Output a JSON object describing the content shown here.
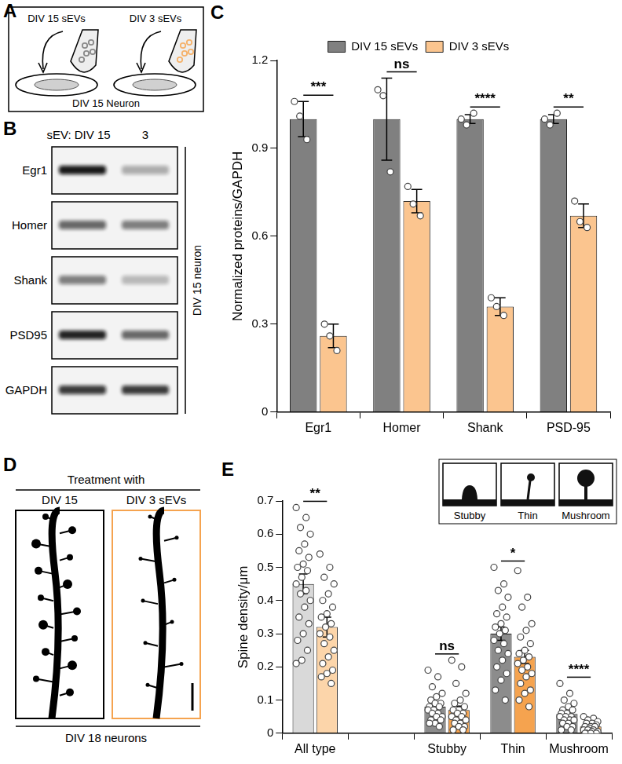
{
  "panel_a": {
    "label": "A",
    "sources": [
      "DIV 15 sEVs",
      "DIV 3 sEVs"
    ],
    "target": "DIV 15 Neuron"
  },
  "panel_b": {
    "label": "B",
    "lanes": [
      "sEV: DIV 15",
      "3"
    ],
    "rows": [
      "Egr1",
      "Homer",
      "Shank",
      "PSD95",
      "GAPDH"
    ],
    "side_label": "DIV 15 neuron"
  },
  "panel_d": {
    "label": "D",
    "title": "Treatment with",
    "images": [
      "DIV 15",
      "DIV 3 sEVs"
    ],
    "caption": "DIV 18 neurons"
  },
  "chart_data": [
    {
      "panel": "C",
      "type": "bar",
      "categories": [
        "Egr1",
        "Homer",
        "Shank",
        "PSD-95"
      ],
      "y_label": "Normalized proteins/GAPDH",
      "ylim": [
        0,
        1.2
      ],
      "yticks": [
        0,
        0.3,
        0.6,
        0.9,
        1.2
      ],
      "grid": false,
      "legend": "top",
      "series": [
        {
          "name": "DIV 15 sEVs",
          "color": "#808080",
          "values": [
            1.0,
            1.0,
            1.0,
            1.0
          ],
          "errors": [
            0.06,
            0.14,
            0.015,
            0.015
          ],
          "points": [
            [
              1.06,
              0.93,
              1.01
            ],
            [
              1.1,
              0.82,
              1.08
            ],
            [
              1.0,
              1.02,
              0.98
            ],
            [
              1.0,
              1.02,
              0.98
            ]
          ]
        },
        {
          "name": "DIV 3 sEVs",
          "color": "#fbc58f",
          "values": [
            0.26,
            0.72,
            0.36,
            0.67
          ],
          "errors": [
            0.04,
            0.04,
            0.03,
            0.04
          ],
          "points": [
            [
              0.3,
              0.21,
              0.26
            ],
            [
              0.77,
              0.67,
              0.71
            ],
            [
              0.39,
              0.33,
              0.36
            ],
            [
              0.72,
              0.63,
              0.65
            ]
          ]
        }
      ],
      "significance": [
        "***",
        "ns",
        "****",
        "**"
      ]
    },
    {
      "panel": "E",
      "type": "bar",
      "categories": [
        "All type",
        null,
        "Stubby",
        "Thin",
        "Mushroom"
      ],
      "y_label": "Spine density/μm",
      "ylim": [
        0,
        0.7
      ],
      "yticks": [
        0,
        0.1,
        0.2,
        0.3,
        0.4,
        0.5,
        0.6,
        0.7
      ],
      "grid": false,
      "inset": [
        "Stubby",
        "Thin",
        "Mushroom"
      ],
      "series": [
        {
          "colors": [
            "#d9d9d9",
            null,
            "#8c8c8c",
            "#8c8c8c",
            "#8c8c8c"
          ],
          "values": [
            0.45,
            null,
            0.08,
            0.3,
            0.058
          ],
          "errors": [
            0.03,
            null,
            0.012,
            0.02,
            0.006
          ],
          "points": [
            [
              0.68,
              0.65,
              0.62,
              0.6,
              0.57,
              0.55,
              0.53,
              0.51,
              0.5,
              0.49,
              0.47,
              0.45,
              0.43,
              0.42,
              0.4,
              0.38,
              0.35,
              0.33,
              0.3,
              0.28,
              0.25,
              0.22,
              0.21
            ],
            null,
            [
              0.19,
              0.17,
              0.14,
              0.12,
              0.11,
              0.1,
              0.09,
              0.09,
              0.08,
              0.08,
              0.07,
              0.07,
              0.06,
              0.06,
              0.05,
              0.05,
              0.04,
              0.04,
              0.03,
              0.03,
              0.02
            ],
            [
              0.5,
              0.45,
              0.43,
              0.41,
              0.38,
              0.36,
              0.35,
              0.33,
              0.32,
              0.31,
              0.3,
              0.28,
              0.27,
              0.25,
              0.24,
              0.22,
              0.2,
              0.18,
              0.16,
              0.13,
              0.1
            ],
            [
              0.15,
              0.12,
              0.1,
              0.09,
              0.08,
              0.07,
              0.07,
              0.06,
              0.06,
              0.05,
              0.05,
              0.05,
              0.04,
              0.04,
              0.04,
              0.03,
              0.03,
              0.02,
              0.02,
              0.01,
              0.01
            ]
          ]
        },
        {
          "colors": [
            "#fcd5aa",
            null,
            "#f5a34f",
            "#f5a34f",
            "#f5a34f"
          ],
          "values": [
            0.32,
            null,
            0.07,
            0.23,
            0.02
          ],
          "errors": [
            0.03,
            null,
            0.012,
            0.02,
            0.004
          ],
          "points": [
            [
              0.54,
              0.5,
              0.47,
              0.45,
              0.42,
              0.4,
              0.38,
              0.36,
              0.35,
              0.33,
              0.32,
              0.3,
              0.29,
              0.27,
              0.25,
              0.23,
              0.21,
              0.19,
              0.18,
              0.17,
              0.15
            ],
            null,
            [
              0.22,
              0.2,
              0.15,
              0.12,
              0.1,
              0.09,
              0.08,
              0.07,
              0.07,
              0.06,
              0.06,
              0.05,
              0.05,
              0.04,
              0.04,
              0.03,
              0.03,
              0.02,
              0.02,
              0.01,
              0.01
            ],
            [
              0.49,
              0.41,
              0.38,
              0.33,
              0.31,
              0.29,
              0.27,
              0.25,
              0.24,
              0.23,
              0.22,
              0.21,
              0.2,
              0.19,
              0.18,
              0.17,
              0.15,
              0.13,
              0.12,
              0.1,
              0.08
            ],
            [
              0.05,
              0.045,
              0.04,
              0.035,
              0.03,
              0.03,
              0.025,
              0.02,
              0.02,
              0.02,
              0.015,
              0.01,
              0.01,
              0.01,
              0.005,
              0.005,
              0,
              0,
              0,
              0
            ]
          ]
        }
      ],
      "significance": [
        "**",
        null,
        "ns",
        "*",
        "****"
      ]
    }
  ]
}
